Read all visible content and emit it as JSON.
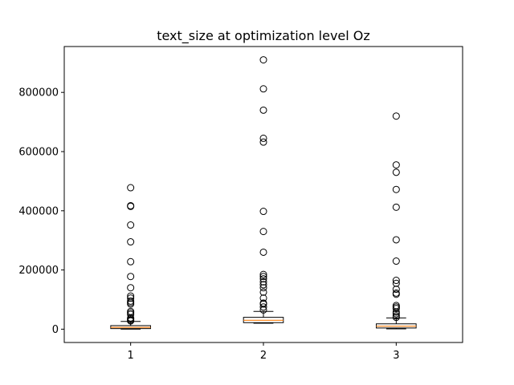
{
  "chart_data": {
    "type": "box",
    "title": "text_size at optimization level Oz",
    "xlabel": "",
    "ylabel": "",
    "categories": [
      "1",
      "2",
      "3"
    ],
    "ylim": [
      -45000,
      955000
    ],
    "yticks": [
      0,
      200000,
      400000,
      600000,
      800000
    ],
    "ytick_labels": [
      "0",
      "200000",
      "400000",
      "600000",
      "800000"
    ],
    "grid": false,
    "colors": {
      "box": "#000000",
      "median": "#ff7f0e",
      "flier": "#000000"
    },
    "boxes": [
      {
        "name": "1",
        "whisker_low": 0,
        "q1": 2000,
        "median": 6000,
        "q3": 12000,
        "whisker_high": 26000,
        "fliers": [
          28000,
          31000,
          35000,
          38000,
          50000,
          55000,
          60000,
          85000,
          90000,
          95000,
          105000,
          112000,
          140000,
          178000,
          228000,
          295000,
          352000,
          415000,
          417000,
          478000
        ]
      },
      {
        "name": "2",
        "whisker_low": 20000,
        "q1": 22000,
        "median": 30000,
        "q3": 40000,
        "whisker_high": 60000,
        "fliers": [
          65000,
          75000,
          85000,
          88000,
          105000,
          125000,
          140000,
          150000,
          160000,
          170000,
          178000,
          185000,
          260000,
          330000,
          398000,
          632000,
          645000,
          740000,
          812000,
          910000
        ]
      },
      {
        "name": "3",
        "whisker_low": 1000,
        "q1": 4000,
        "median": 10000,
        "q3": 18000,
        "whisker_high": 38000,
        "fliers": [
          40000,
          45000,
          52000,
          58000,
          70000,
          75000,
          80000,
          118000,
          122000,
          135000,
          155000,
          165000,
          230000,
          302000,
          412000,
          472000,
          530000,
          555000,
          720000
        ]
      }
    ]
  }
}
